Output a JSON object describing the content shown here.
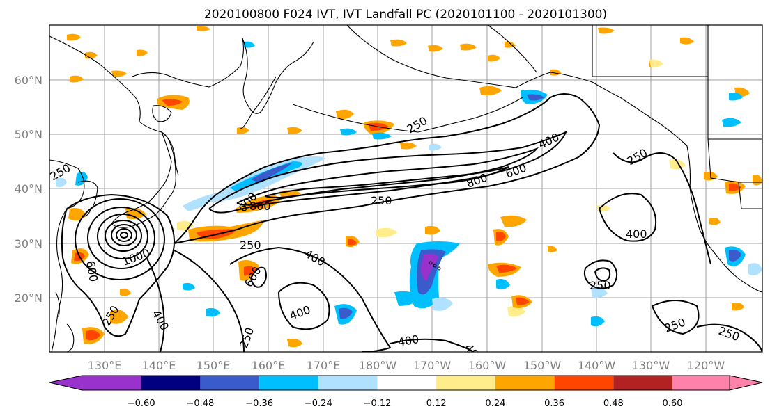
{
  "title": "2020100800 F024 IVT, IVT Landfall PC (2020101100 - 2020101300)",
  "map": {
    "lat_labels": [
      "60°N",
      "50°N",
      "40°N",
      "30°N",
      "20°N"
    ],
    "lon_labels": [
      "130°E",
      "140°E",
      "150°E",
      "160°E",
      "170°E",
      "180°W",
      "170°W",
      "160°W",
      "150°W",
      "140°W",
      "130°W",
      "120°W"
    ],
    "contour_labels": {
      "c250a": "250",
      "c250b": "250",
      "c250c": "250",
      "c250d": "250",
      "c250e": "250",
      "c250f": "250",
      "c250g": "250",
      "c250h": "250",
      "c250i": "250",
      "c250j": "250",
      "c400a": "400",
      "c400b": "400",
      "c400c": "400",
      "c400d": "400",
      "c400e": "400",
      "c400f": "400",
      "c400g": "400",
      "c600a": "600",
      "c600b": "600",
      "c600c": "600",
      "c600d": "600",
      "c800a": "800",
      "c800b": "800",
      "c1000": "1000"
    }
  },
  "colorbar": {
    "ticks": [
      "−0.60",
      "−0.48",
      "−0.36",
      "−0.24",
      "−0.12",
      "0.12",
      "0.24",
      "0.36",
      "0.48",
      "0.60"
    ],
    "colors": [
      "#9932cc",
      "#000080",
      "#3a5bcc",
      "#00bfff",
      "#b0e2ff",
      "#ffffff",
      "#ffec8b",
      "#ffa500",
      "#ff4500",
      "#b22222",
      "#ff82ab"
    ]
  }
}
